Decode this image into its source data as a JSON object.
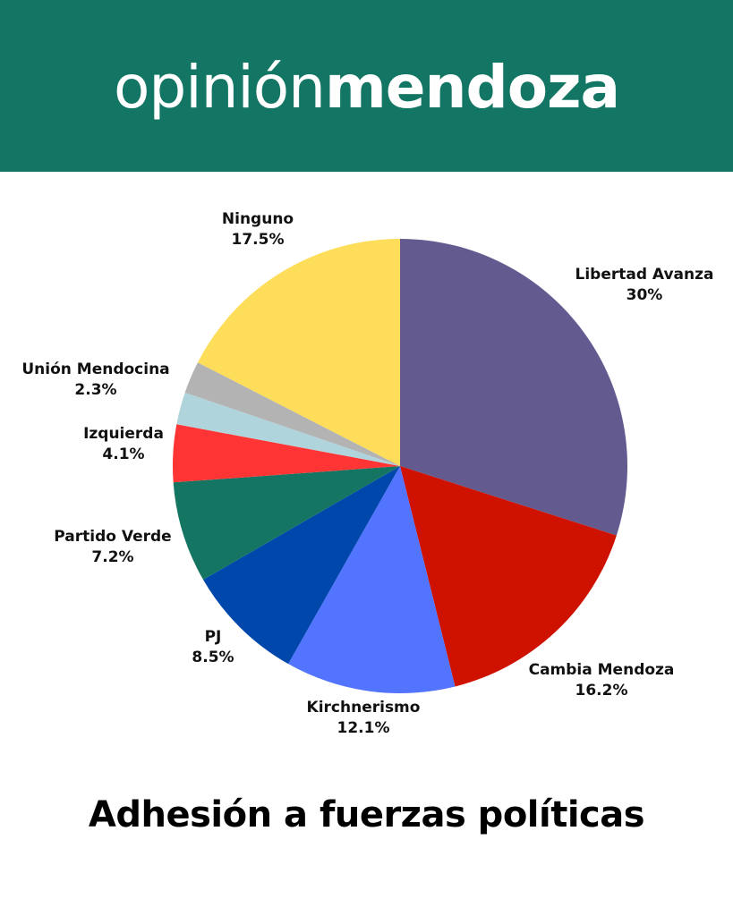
{
  "header": {
    "brand_light": "opinión",
    "brand_bold": "mendoza",
    "background": "#137564"
  },
  "chart_data": {
    "type": "pie",
    "title": "Adhesión a fuerzas políticas",
    "slices": [
      {
        "label": "Libertad Avanza",
        "value": 30,
        "display": "30%",
        "color": "#635a8f"
      },
      {
        "label": "Cambia Mendoza",
        "value": 16.2,
        "display": "16.2%",
        "color": "#cf1100"
      },
      {
        "label": "Kirchnerismo",
        "value": 12.1,
        "display": "12.1%",
        "color": "#5274ff"
      },
      {
        "label": "PJ",
        "value": 8.5,
        "display": "8.5%",
        "color": "#0047ab"
      },
      {
        "label": "Partido Verde",
        "value": 7.2,
        "display": "7.2%",
        "color": "#147563"
      },
      {
        "label": "Izquierda",
        "value": 4.1,
        "display": "4.1%",
        "color": "#ff3535"
      },
      {
        "label": "",
        "value": 2.3,
        "display": "",
        "color": "#b0d4dc"
      },
      {
        "label": "Unión Mendocina",
        "value": 2.3,
        "display": "2.3%",
        "color": "#b3b3b3"
      },
      {
        "label": "Ninguno",
        "value": 17.5,
        "display": "17.5%",
        "color": "#fedd5a"
      }
    ]
  }
}
